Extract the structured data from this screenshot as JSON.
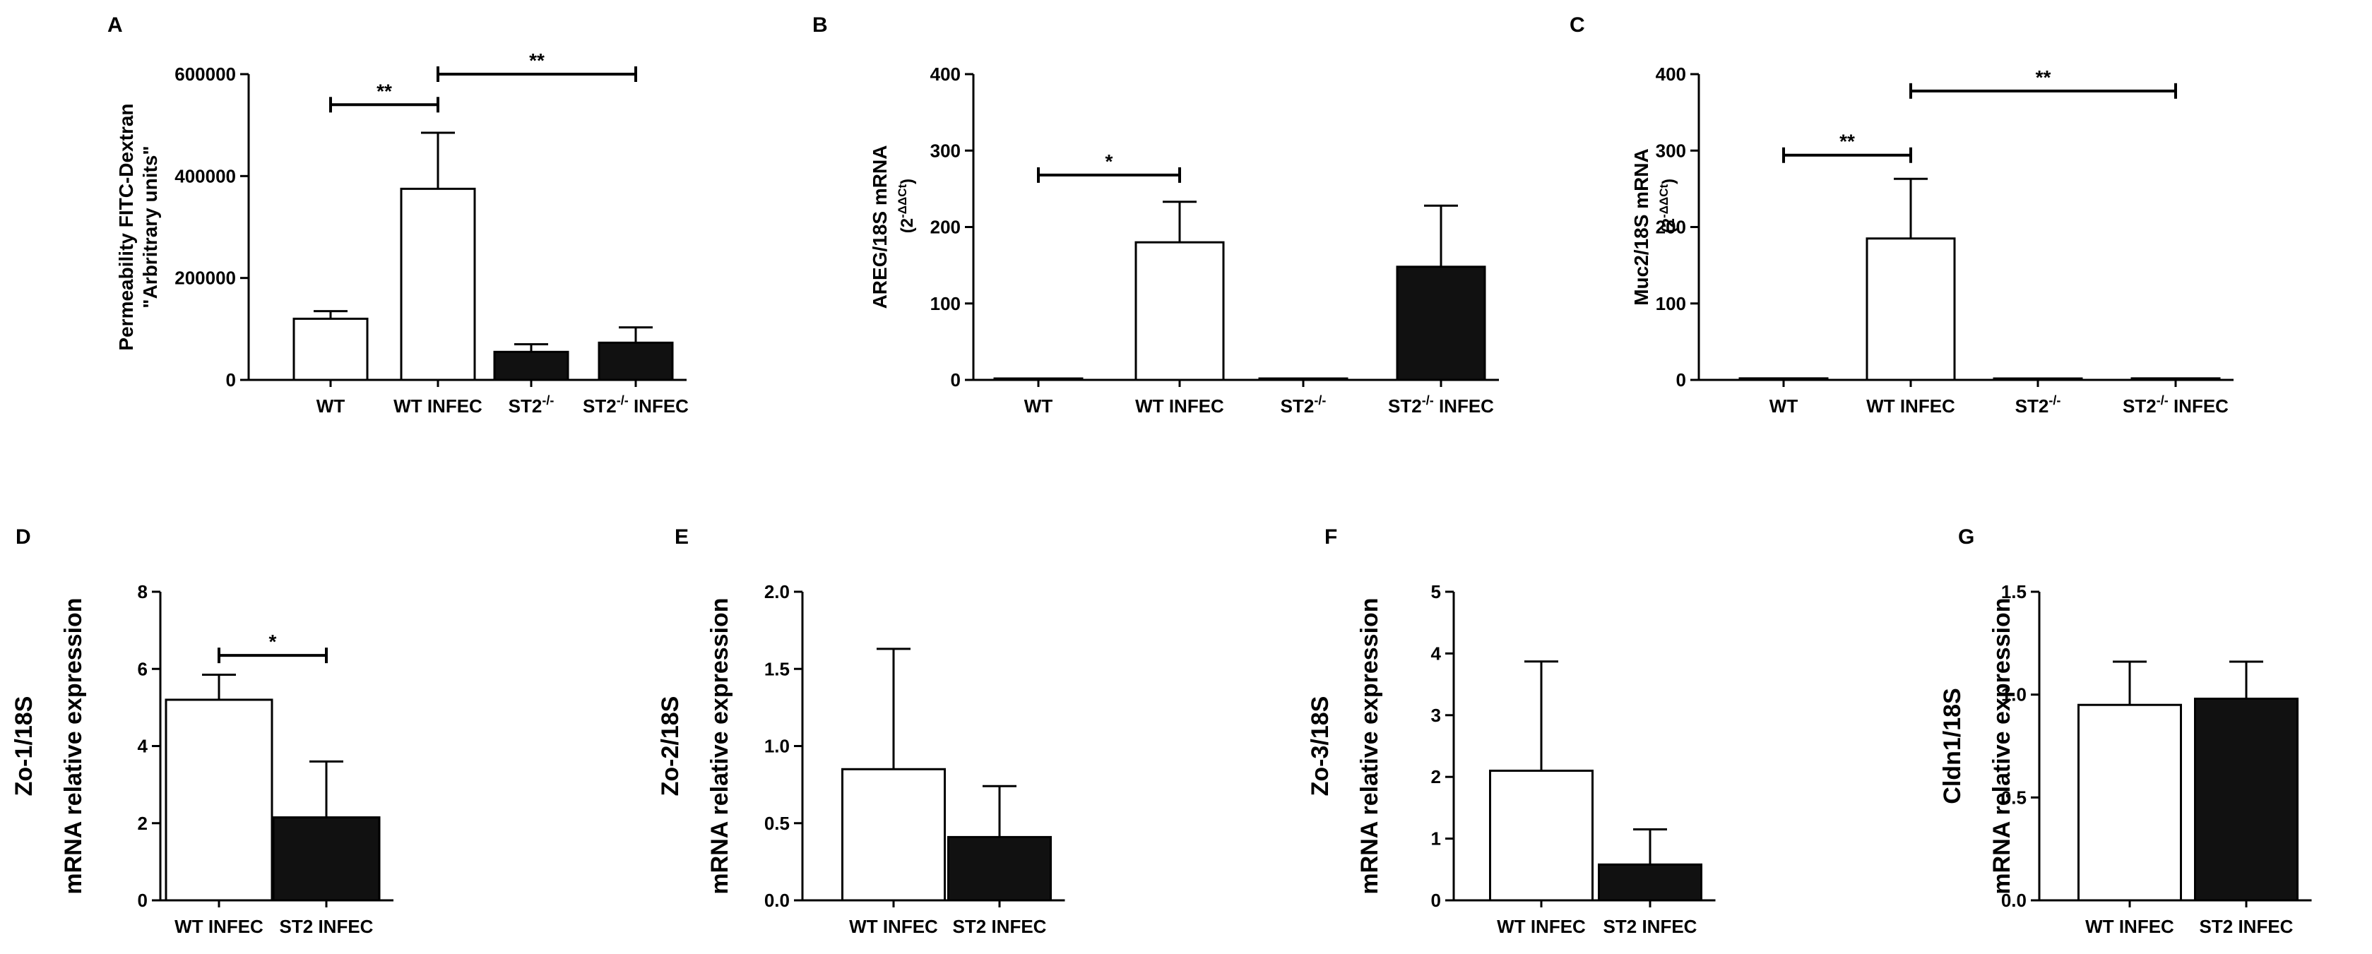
{
  "figure": {
    "panels": [
      "A",
      "B",
      "C",
      "D",
      "E",
      "F",
      "G"
    ]
  },
  "chart_data": [
    {
      "panel": "A",
      "type": "bar",
      "ylabel_lines": [
        "Permeability FITC-Dextran",
        "\"Arbritrary units\""
      ],
      "ylim": [
        0,
        600000
      ],
      "yticks": [
        0,
        200000,
        400000,
        600000
      ],
      "ytick_labels": [
        "0",
        "200000",
        "400000",
        "600000"
      ],
      "categories": [
        {
          "base": "WT",
          "sup": "",
          "tail": ""
        },
        {
          "base": "WT INFEC",
          "sup": "",
          "tail": ""
        },
        {
          "base": "ST2",
          "sup": "-/-",
          "tail": ""
        },
        {
          "base": "ST2",
          "sup": "-/-",
          "tail": " INFEC"
        }
      ],
      "values": [
        120000,
        375000,
        55000,
        73000
      ],
      "errors": [
        15000,
        110000,
        15000,
        30000
      ],
      "fills": [
        "#ffffff",
        "#ffffff",
        "#111111",
        "#111111"
      ],
      "significance": [
        {
          "from": 0,
          "to": 1,
          "label": "**",
          "level": 540000
        },
        {
          "from": 1,
          "to": 3,
          "label": "**",
          "level": 600000
        }
      ]
    },
    {
      "panel": "B",
      "type": "bar",
      "ylabel_lines": [
        "AREG/18S mRNA"
      ],
      "ylabel_sub": {
        "base": "(2",
        "sup": "-ΔΔCt",
        "tail": ")"
      },
      "ylim": [
        0,
        400
      ],
      "yticks": [
        0,
        100,
        200,
        300,
        400
      ],
      "ytick_labels": [
        "0",
        "100",
        "200",
        "300",
        "400"
      ],
      "categories": [
        {
          "base": "WT",
          "sup": "",
          "tail": ""
        },
        {
          "base": "WT INFEC",
          "sup": "",
          "tail": ""
        },
        {
          "base": "ST2",
          "sup": "-/-",
          "tail": ""
        },
        {
          "base": "ST2",
          "sup": "-/-",
          "tail": " INFEC"
        }
      ],
      "values": [
        1,
        180,
        1,
        148
      ],
      "errors": [
        0,
        53,
        0,
        80
      ],
      "fills": [
        "#ffffff",
        "#ffffff",
        "#ffffff",
        "#111111"
      ],
      "significance": [
        {
          "from": 0,
          "to": 1,
          "label": "*",
          "level": 268
        }
      ]
    },
    {
      "panel": "C",
      "type": "bar",
      "ylabel_lines": [
        "Muc2/18S mRNA"
      ],
      "ylabel_sub": {
        "base": "(2",
        "sup": "-ΔΔCt",
        "tail": ")"
      },
      "ylim": [
        0,
        400
      ],
      "yticks": [
        0,
        100,
        200,
        300,
        400
      ],
      "ytick_labels": [
        "0",
        "100",
        "200",
        "300",
        "400"
      ],
      "categories": [
        {
          "base": "WT",
          "sup": "",
          "tail": ""
        },
        {
          "base": "WT INFEC",
          "sup": "",
          "tail": ""
        },
        {
          "base": "ST2",
          "sup": "-/-",
          "tail": ""
        },
        {
          "base": "ST2",
          "sup": "-/-",
          "tail": " INFEC"
        }
      ],
      "values": [
        2,
        185,
        1,
        2
      ],
      "errors": [
        0,
        78,
        0,
        0
      ],
      "fills": [
        "#ffffff",
        "#ffffff",
        "#ffffff",
        "#ffffff"
      ],
      "significance": [
        {
          "from": 0,
          "to": 1,
          "label": "**",
          "level": 294
        },
        {
          "from": 1,
          "to": 3,
          "label": "**",
          "level": 378
        }
      ]
    },
    {
      "panel": "D",
      "type": "bar",
      "ylabel_lines": [
        "Zo-1/18S",
        "mRNA relative expression"
      ],
      "ylim": [
        0,
        8
      ],
      "yticks": [
        0,
        2,
        4,
        6,
        8
      ],
      "ytick_labels": [
        "0",
        "2",
        "4",
        "6",
        "8"
      ],
      "categories": [
        {
          "base": "WT INFEC",
          "sup": "",
          "tail": ""
        },
        {
          "base": "ST2 INFEC",
          "sup": "",
          "tail": ""
        }
      ],
      "values": [
        5.2,
        2.15
      ],
      "errors": [
        0.65,
        1.45
      ],
      "fills": [
        "#ffffff",
        "#111111"
      ],
      "significance": [
        {
          "from": 0,
          "to": 1,
          "label": "*",
          "level": 6.35
        }
      ]
    },
    {
      "panel": "E",
      "type": "bar",
      "ylabel_lines": [
        "Zo-2/18S",
        "mRNA relative expression"
      ],
      "ylim": [
        0,
        2.0
      ],
      "yticks": [
        0,
        0.5,
        1.0,
        1.5,
        2.0
      ],
      "ytick_labels": [
        "0.0",
        "0.5",
        "1.0",
        "1.5",
        "2.0"
      ],
      "categories": [
        {
          "base": "WT INFEC",
          "sup": "",
          "tail": ""
        },
        {
          "base": "ST2 INFEC",
          "sup": "",
          "tail": ""
        }
      ],
      "values": [
        0.85,
        0.41
      ],
      "errors": [
        0.78,
        0.33
      ],
      "fills": [
        "#ffffff",
        "#111111"
      ],
      "significance": []
    },
    {
      "panel": "F",
      "type": "bar",
      "ylabel_lines": [
        "Zo-3/18S",
        "mRNA relative expression"
      ],
      "ylim": [
        0,
        5
      ],
      "yticks": [
        0,
        1,
        2,
        3,
        4,
        5
      ],
      "ytick_labels": [
        "0",
        "1",
        "2",
        "3",
        "4",
        "5"
      ],
      "categories": [
        {
          "base": "WT INFEC",
          "sup": "",
          "tail": ""
        },
        {
          "base": "ST2 INFEC",
          "sup": "",
          "tail": ""
        }
      ],
      "values": [
        2.1,
        0.58
      ],
      "errors": [
        1.77,
        0.57
      ],
      "fills": [
        "#ffffff",
        "#111111"
      ],
      "significance": []
    },
    {
      "panel": "G",
      "type": "bar",
      "ylabel_lines": [
        "Cldn1/18S",
        "mRNA relative expression"
      ],
      "ylim": [
        0,
        1.5
      ],
      "yticks": [
        0,
        0.5,
        1.0,
        1.5
      ],
      "ytick_labels": [
        "0.0",
        "0.5",
        "1.0",
        "1.5"
      ],
      "categories": [
        {
          "base": "WT INFEC",
          "sup": "",
          "tail": ""
        },
        {
          "base": "ST2 INFEC",
          "sup": "",
          "tail": ""
        }
      ],
      "values": [
        0.95,
        0.98
      ],
      "errors": [
        0.21,
        0.18
      ],
      "fills": [
        "#ffffff",
        "#111111"
      ],
      "significance": []
    }
  ]
}
